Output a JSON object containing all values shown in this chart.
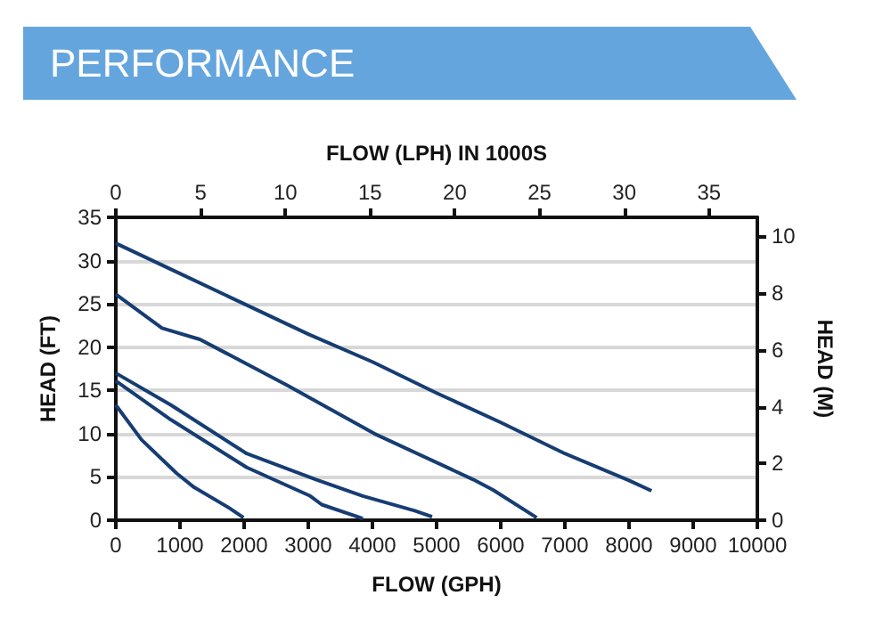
{
  "chart_data": {
    "type": "line",
    "title": "PERFORMANCE",
    "xlabel": "FLOW (GPH)",
    "x2label": "FLOW (LPH) IN 1000S",
    "ylabel": "HEAD (FT)",
    "y2label": "HEAD (M)",
    "xlim": [
      0,
      10000
    ],
    "xticks": [
      0,
      1000,
      2000,
      3000,
      4000,
      5000,
      6000,
      7000,
      8000,
      9000,
      10000
    ],
    "x2lim": [
      0,
      37.85
    ],
    "x2ticks": [
      0,
      5,
      10,
      15,
      20,
      25,
      30,
      35
    ],
    "ylim": [
      0,
      35
    ],
    "yticks": [
      0,
      5,
      10,
      15,
      20,
      25,
      30,
      35
    ],
    "y2lim": [
      0,
      10.67
    ],
    "y2ticks": [
      0,
      2,
      4,
      6,
      8,
      10
    ],
    "grid": "y",
    "marker": "none",
    "line_style": "solid",
    "series": [
      {
        "color": "#163d73",
        "x": [
          0,
          400,
          950,
          1220,
          1770,
          1990
        ],
        "values": [
          13.3,
          9.3,
          5.4,
          3.8,
          1.4,
          0.3
        ]
      },
      {
        "color": "#163d73",
        "x": [
          0,
          860,
          2040,
          3030,
          3210,
          3850
        ],
        "values": [
          16.1,
          11.6,
          6.1,
          2.8,
          1.8,
          0.2
        ]
      },
      {
        "color": "#163d73",
        "x": [
          0,
          860,
          2040,
          3120,
          3850,
          4660,
          4930
        ],
        "values": [
          17,
          13.3,
          7.7,
          4.7,
          2.8,
          1.1,
          0.4
        ]
      },
      {
        "color": "#163d73",
        "x": [
          0,
          720,
          1310,
          2670,
          4030,
          5570,
          5880,
          6560
        ],
        "values": [
          26.1,
          22.2,
          20.9,
          15.6,
          10,
          4.7,
          3.5,
          0.3
        ]
      },
      {
        "color": "#163d73",
        "x": [
          0,
          1000,
          2000,
          3000,
          4000,
          5000,
          6000,
          7000,
          8000,
          8350
        ],
        "values": [
          32,
          28.5,
          25,
          21.5,
          18.3,
          14.7,
          11.3,
          7.7,
          4.6,
          3.4
        ]
      }
    ]
  }
}
